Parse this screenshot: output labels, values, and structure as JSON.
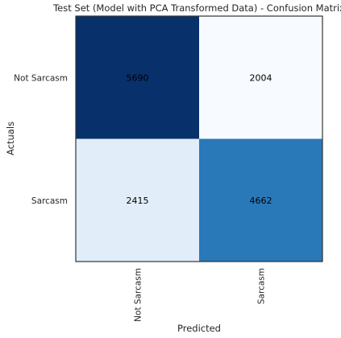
{
  "chart_data": {
    "type": "heatmap",
    "title": "Test Set (Model with PCA Transformed Data) - Confusion Matrix",
    "xlabel": "Predicted",
    "ylabel": "Actuals",
    "x_categories": [
      "Not Sarcasm",
      "Sarcasm"
    ],
    "y_categories": [
      "Not Sarcasm",
      "Sarcasm"
    ],
    "matrix": [
      [
        5690,
        2004
      ],
      [
        2415,
        4662
      ]
    ],
    "colormap": "Blues",
    "grid": false,
    "text_color": "#000000"
  }
}
